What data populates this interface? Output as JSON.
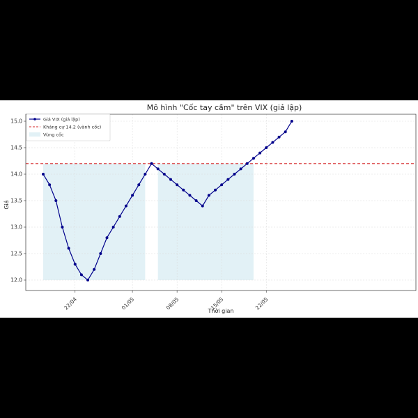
{
  "chart_data": {
    "type": "line",
    "title": "Mô hình \"Cốc tay cầm\" trên VIX (giả lập)",
    "xlabel": "Thời gian",
    "ylabel": "Giá",
    "ylim": [
      11.85,
      15.1
    ],
    "yticks": [
      "12.0",
      "12.5",
      "13.0",
      "13.5",
      "14.0",
      "14.5",
      "15.0"
    ],
    "xticks": [
      {
        "label": "22/04",
        "day": "2024-04-22"
      },
      {
        "label": "01/05",
        "day": "2024-05-01"
      },
      {
        "label": "08/05",
        "day": "2024-05-08"
      },
      {
        "label": "15/05",
        "day": "2024-05-15"
      },
      {
        "label": "22/05",
        "day": "2024-05-22"
      }
    ],
    "grid": true,
    "legend_position": "top-left",
    "legend": {
      "series_label": "Giá VIX (giả lập)",
      "resistance_label": "Kháng cự 14.2 (vành cốc)",
      "zone_label": "Vùng cốc"
    },
    "series": [
      {
        "name": "Giá VIX (giả lập)",
        "color": "#00008b",
        "points": [
          [
            "2024-04-17",
            14.0
          ],
          [
            "2024-04-18",
            13.8
          ],
          [
            "2024-04-19",
            13.5
          ],
          [
            "2024-04-20",
            13.0
          ],
          [
            "2024-04-21",
            12.6
          ],
          [
            "2024-04-22",
            12.3
          ],
          [
            "2024-04-23",
            12.1
          ],
          [
            "2024-04-24",
            12.0
          ],
          [
            "2024-04-25",
            12.2
          ],
          [
            "2024-04-26",
            12.5
          ],
          [
            "2024-04-27",
            12.8
          ],
          [
            "2024-04-28",
            13.0
          ],
          [
            "2024-04-29",
            13.2
          ],
          [
            "2024-04-30",
            13.4
          ],
          [
            "2024-05-01",
            13.6
          ],
          [
            "2024-05-02",
            13.8
          ],
          [
            "2024-05-03",
            14.0
          ],
          [
            "2024-05-04",
            14.2
          ],
          [
            "2024-05-05",
            14.1
          ],
          [
            "2024-05-06",
            14.0
          ],
          [
            "2024-05-07",
            13.9
          ],
          [
            "2024-05-08",
            13.8
          ],
          [
            "2024-05-09",
            13.7
          ],
          [
            "2024-05-10",
            13.6
          ],
          [
            "2024-05-11",
            13.5
          ],
          [
            "2024-05-12",
            13.4
          ],
          [
            "2024-05-13",
            13.6
          ],
          [
            "2024-05-14",
            13.7
          ],
          [
            "2024-05-15",
            13.8
          ],
          [
            "2024-05-16",
            13.9
          ],
          [
            "2024-05-17",
            14.0
          ],
          [
            "2024-05-18",
            14.1
          ],
          [
            "2024-05-19",
            14.2
          ],
          [
            "2024-05-20",
            14.3
          ],
          [
            "2024-05-21",
            14.4
          ],
          [
            "2024-05-22",
            14.5
          ],
          [
            "2024-05-23",
            14.6
          ],
          [
            "2024-05-24",
            14.7
          ],
          [
            "2024-05-25",
            14.8
          ],
          [
            "2024-05-26",
            15.0
          ]
        ]
      }
    ],
    "resistance": {
      "value": 14.2,
      "color": "#d62728"
    },
    "zones": [
      {
        "start": "2024-04-17",
        "end": "2024-05-03",
        "low": 12.0,
        "high": 14.2,
        "color": "#add8e6"
      },
      {
        "start": "2024-05-05",
        "end": "2024-05-20",
        "low": 12.0,
        "high": 14.2,
        "color": "#add8e6"
      }
    ]
  }
}
